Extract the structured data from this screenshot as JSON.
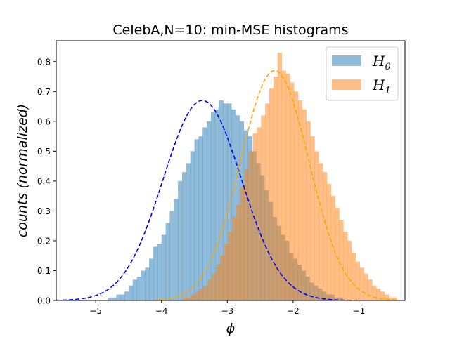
{
  "chart_data": {
    "type": "histogram",
    "title": "CelebA,N=10: min-MSE histograms",
    "xlabel": "ϕ",
    "ylabel": "counts (normalized)",
    "xlim": [
      -5.6,
      -0.3
    ],
    "ylim": [
      0,
      0.87
    ],
    "xticks": [
      -5,
      -4,
      -3,
      -2,
      -1
    ],
    "xtick_labels": [
      "−5",
      "−4",
      "−3",
      "−2",
      "−1"
    ],
    "yticks": [
      0.0,
      0.1,
      0.2,
      0.3,
      0.4,
      0.5,
      0.6,
      0.7,
      0.8
    ],
    "ytick_labels": [
      "0.0",
      "0.1",
      "0.2",
      "0.3",
      "0.4",
      "0.5",
      "0.6",
      "0.7",
      "0.8"
    ],
    "grid": false,
    "legend_position": "top-right",
    "series": [
      {
        "name": "H",
        "subscript": "0",
        "color": "#1f77b4",
        "fill_color": "#8fbbd9",
        "curve_color": "#0000ff",
        "bin_start": -5.5,
        "bin_width": 0.0625,
        "heights": [
          0.0,
          0.0,
          0.0,
          0.0,
          0.0,
          0.0,
          0.0,
          0.0,
          0.0,
          0.0,
          0.0,
          0.01,
          0.01,
          0.02,
          0.02,
          0.03,
          0.05,
          0.07,
          0.08,
          0.1,
          0.11,
          0.14,
          0.18,
          0.19,
          0.22,
          0.26,
          0.3,
          0.34,
          0.4,
          0.43,
          0.46,
          0.5,
          0.54,
          0.55,
          0.58,
          0.6,
          0.63,
          0.64,
          0.67,
          0.66,
          0.66,
          0.64,
          0.62,
          0.6,
          0.57,
          0.55,
          0.5,
          0.46,
          0.42,
          0.37,
          0.33,
          0.28,
          0.25,
          0.22,
          0.2,
          0.16,
          0.14,
          0.12,
          0.1,
          0.08,
          0.06,
          0.05,
          0.04,
          0.03,
          0.02,
          0.02,
          0.01,
          0.01,
          0.0,
          0.0,
          0.0,
          0.0,
          0.0,
          0.0
        ]
      },
      {
        "name": "H",
        "subscript": "1",
        "color": "#ff7f0e",
        "fill_color": "#ffbf86",
        "curve_color": "#ffa500",
        "bin_start": -3.8,
        "bin_width": 0.0625,
        "heights": [
          0.0,
          0.0,
          0.01,
          0.01,
          0.02,
          0.03,
          0.04,
          0.05,
          0.07,
          0.09,
          0.12,
          0.15,
          0.19,
          0.23,
          0.28,
          0.32,
          0.38,
          0.44,
          0.5,
          0.56,
          0.58,
          0.62,
          0.66,
          0.71,
          0.75,
          0.83,
          0.77,
          0.76,
          0.73,
          0.7,
          0.67,
          0.64,
          0.6,
          0.55,
          0.5,
          0.46,
          0.43,
          0.39,
          0.35,
          0.31,
          0.27,
          0.23,
          0.2,
          0.16,
          0.13,
          0.11,
          0.09,
          0.07,
          0.05,
          0.04,
          0.03,
          0.02,
          0.01,
          0.01,
          0.0
        ]
      }
    ],
    "fitted_curves": [
      {
        "series": "H0",
        "mean": -3.38,
        "std": 0.595,
        "peak": 0.67,
        "x_range": [
          -5.6,
          -1.1
        ]
      },
      {
        "series": "H1",
        "mean": -2.28,
        "std": 0.52,
        "peak": 0.77,
        "x_range": [
          -4.1,
          -0.4
        ]
      }
    ]
  }
}
